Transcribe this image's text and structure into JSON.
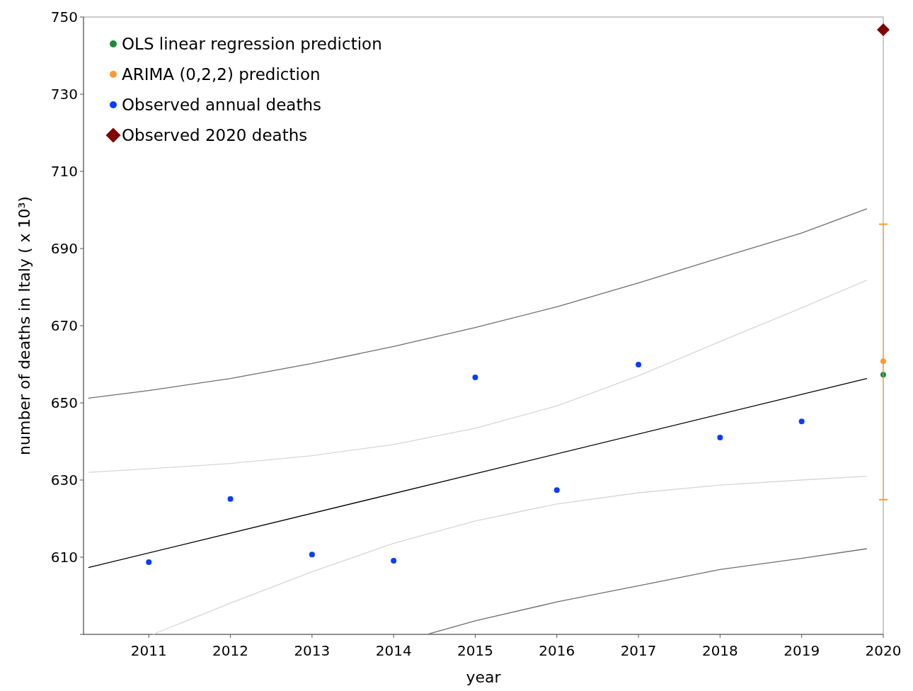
{
  "chart_data": {
    "type": "scatter",
    "xlabel": "year",
    "ylabel": "number of deaths in Italy ( x 10³)",
    "xlim": [
      2010.2,
      2020
    ],
    "xticks": [
      2011,
      2012,
      2013,
      2014,
      2015,
      2016,
      2017,
      2018,
      2019,
      2020
    ],
    "ylim": [
      590,
      750
    ],
    "yticks": [
      {
        "value": 590,
        "label": null
      },
      610,
      630,
      650,
      670,
      690,
      710,
      730,
      750
    ],
    "grid": false,
    "legend": "top left",
    "series": [
      {
        "type": "line",
        "color": "#000000",
        "marker": "none",
        "x": [
          2010.26,
          2019.8
        ],
        "values": [
          607.3,
          656.3
        ]
      },
      {
        "type": "line",
        "color": "#6e6e6e",
        "marker": "none",
        "x": [
          2010.26,
          2011,
          2012,
          2013,
          2014,
          2015,
          2016,
          2017,
          2018,
          2019,
          2019.8
        ],
        "values": [
          651.2,
          653.2,
          656.3,
          660.2,
          664.6,
          669.5,
          674.9,
          681.1,
          687.6,
          694,
          700.3
        ]
      },
      {
        "type": "line",
        "color": "#6e6e6e",
        "marker": "none",
        "x": [
          2014.43,
          2015,
          2016,
          2017,
          2018,
          2019,
          2019.8
        ],
        "values": [
          590.1,
          593.5,
          598.4,
          602.6,
          606.8,
          609.7,
          612.2
        ]
      },
      {
        "type": "line",
        "color": "#d6d6d6",
        "marker": "none",
        "x": [
          2010.26,
          2011,
          2012,
          2013,
          2014,
          2015,
          2016,
          2017,
          2018,
          2019,
          2019.8
        ],
        "values": [
          632,
          632.9,
          634.3,
          636.3,
          639.2,
          643.4,
          649.2,
          657,
          665.9,
          674.6,
          681.8
        ]
      },
      {
        "type": "line",
        "color": "#d6d6d6",
        "marker": "none",
        "x": [
          2011.05,
          2012,
          2013,
          2014,
          2015,
          2016,
          2017,
          2018,
          2019,
          2019.8
        ],
        "values": [
          590,
          598.1,
          606.2,
          613.6,
          619.4,
          623.8,
          626.7,
          628.7,
          630,
          631
        ]
      },
      {
        "name": "OLS linear regression prediction",
        "color": "#1a8a3a",
        "marker": "circle",
        "x": [
          2020
        ],
        "values": [
          657.3
        ]
      },
      {
        "name": "ARIMA (0,2,2) prediction",
        "color": "#ff9933",
        "marker": "circle",
        "x": [
          2020
        ],
        "values": [
          660.8
        ],
        "errors": [
          [
            624.9,
            696.3
          ]
        ]
      },
      {
        "name": "Observed annual deaths",
        "color": "#0a3cff",
        "marker": "circle",
        "x": [
          2011,
          2012,
          2013,
          2014,
          2015,
          2016,
          2017,
          2018,
          2019
        ],
        "values": [
          608.7,
          625.1,
          610.7,
          609.1,
          656.6,
          627.4,
          659.9,
          641,
          645.2
        ]
      },
      {
        "name": "Observed 2020 deaths",
        "color": "#800000",
        "marker": "diamond",
        "x": [
          2020
        ],
        "values": [
          746.7
        ]
      }
    ]
  }
}
